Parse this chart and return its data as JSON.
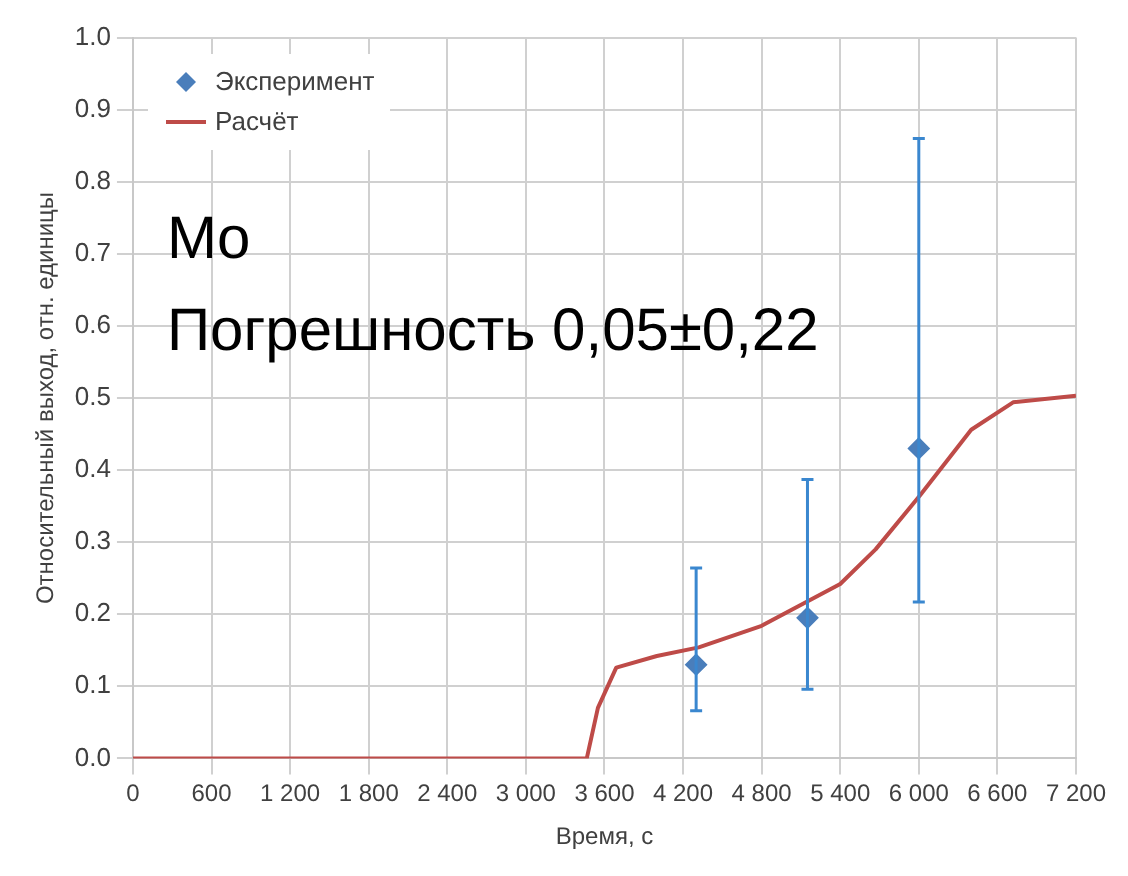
{
  "chart_data": {
    "type": "scatter",
    "xlabel": "Время, с",
    "ylabel": "Относительный выход, отн. единицы",
    "annotations": [
      "Mo",
      "Погрешность 0,05±0,22"
    ],
    "xlim": [
      0,
      7200
    ],
    "xticks": [
      0,
      600,
      {
        "value": 1200,
        "label": "1 200"
      },
      {
        "value": 1800,
        "label": "1 800"
      },
      {
        "value": 2400,
        "label": "2 400"
      },
      {
        "value": 3000,
        "label": "3 000"
      },
      {
        "value": 3600,
        "label": "3 600"
      },
      {
        "value": 4200,
        "label": "4 200"
      },
      {
        "value": 4800,
        "label": "4 800"
      },
      {
        "value": 5400,
        "label": "5 400"
      },
      {
        "value": 6000,
        "label": "6 000"
      },
      {
        "value": 6600,
        "label": "6 600"
      },
      {
        "value": 7200,
        "label": "7 200"
      }
    ],
    "ylim": [
      0,
      1
    ],
    "yticks": [
      {
        "value": 0,
        "label": "0.0"
      },
      0.1,
      0.2,
      0.3,
      0.4,
      0.5,
      0.6,
      0.7,
      0.8,
      0.9,
      {
        "value": 1,
        "label": "1.0"
      }
    ],
    "grid": true,
    "legend": "top left",
    "series": [
      {
        "name": "Эксперимент",
        "type": "scatter",
        "color": "#4a7ebb",
        "marker": "diamond",
        "x": [
          4300,
          5150,
          6000
        ],
        "values": [
          0.13,
          0.195,
          0.43
        ],
        "errors": [
          [
            0.066,
            0.264
          ],
          [
            0.096,
            0.387
          ],
          [
            0.217,
            0.86
          ]
        ]
      },
      {
        "name": "Расчёт",
        "type": "line",
        "color": "#be4b48",
        "marker": "none",
        "line_style": "solid",
        "x": [
          0,
          3000,
          3465,
          3550,
          3690,
          4000,
          4320,
          4800,
          5400,
          5670,
          6010,
          6400,
          6720,
          7200
        ],
        "values": [
          0,
          0,
          0,
          0.07,
          0.126,
          0.142,
          0.154,
          0.184,
          0.242,
          0.29,
          0.365,
          0.456,
          0.494,
          0.503
        ]
      }
    ]
  }
}
